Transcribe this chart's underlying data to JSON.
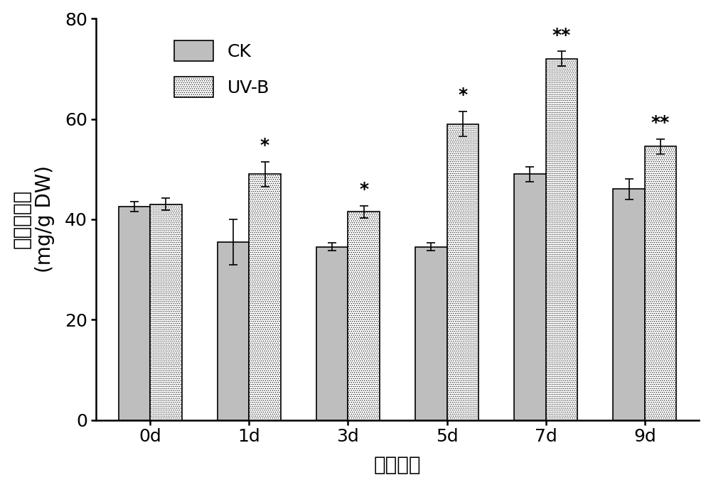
{
  "categories": [
    "0d",
    "1d",
    "3d",
    "5d",
    "7d",
    "9d"
  ],
  "ck_values": [
    42.5,
    35.5,
    34.5,
    34.5,
    49.0,
    46.0
  ],
  "uvb_values": [
    43.0,
    49.0,
    41.5,
    59.0,
    72.0,
    54.5
  ],
  "ck_errors": [
    1.0,
    4.5,
    0.8,
    0.8,
    1.5,
    2.0
  ],
  "uvb_errors": [
    1.2,
    2.5,
    1.2,
    2.5,
    1.5,
    1.5
  ],
  "ck_color": "#bebebe",
  "uvb_face_color": "#ffffff",
  "uvb_hatch_color": "#1a1a1a",
  "ylabel_line1": "总黄酮含量",
  "ylabel_line2": "(mg/g DW)",
  "xlabel": "处理天数",
  "ylim": [
    0,
    80
  ],
  "yticks": [
    0,
    20,
    40,
    60,
    80
  ],
  "legend_labels": [
    "CK",
    "UV-B"
  ],
  "significance_uvb": [
    "",
    "*",
    "*",
    "*",
    "**",
    "**"
  ],
  "bar_width": 0.32,
  "background_color": "#ffffff",
  "tick_fontsize": 18,
  "label_fontsize": 20,
  "legend_fontsize": 18,
  "sig_fontsize": 18
}
